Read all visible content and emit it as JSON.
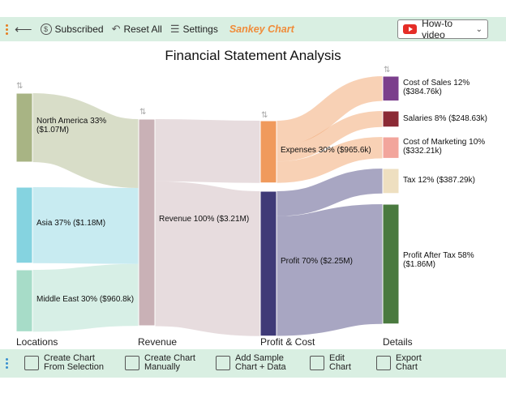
{
  "topbar": {
    "subscribed_label": "Subscribed",
    "reset_label": "Reset All",
    "settings_label": "Settings",
    "brand_label": "Sankey Chart",
    "howto_label": "How-to video"
  },
  "chart_data": {
    "type": "sankey",
    "title": "Financial Statement Analysis",
    "columns": [
      "Locations",
      "Revenue",
      "Profit & Cost",
      "Details"
    ],
    "nodes": [
      {
        "id": "na",
        "label_line1": "North America 33%",
        "label_line2": "($1.07M)",
        "value": 1.07,
        "color": "#a8b484"
      },
      {
        "id": "asia",
        "label_line1": "Asia 37% ($1.18M)",
        "label_line2": "",
        "value": 1.18,
        "color": "#85d3e0"
      },
      {
        "id": "me",
        "label_line1": "Middle East 30% ($960.8k)",
        "label_line2": "",
        "value": 0.9608,
        "color": "#a7dcc8"
      },
      {
        "id": "rev",
        "label_line1": "Revenue 100% ($3.21M)",
        "label_line2": "",
        "value": 3.21,
        "color": "#c9b1b6"
      },
      {
        "id": "exp",
        "label_line1": "Expenses 30% ($965.6k)",
        "label_line2": "",
        "value": 0.9656,
        "color": "#f09a5c"
      },
      {
        "id": "profit",
        "label_line1": "Profit 70% ($2.25M)",
        "label_line2": "",
        "value": 2.25,
        "color": "#3f3a77"
      },
      {
        "id": "cos",
        "label_line1": "Cost of Sales 12%",
        "label_line2": "($384.76k)",
        "value": 0.38476,
        "color": "#7b3f8c"
      },
      {
        "id": "sal",
        "label_line1": "Salaries 8% ($248.63k)",
        "label_line2": "",
        "value": 0.24863,
        "color": "#8b2a35"
      },
      {
        "id": "mkt",
        "label_line1": "Cost of Marketing 10%",
        "label_line2": "($332.21k)",
        "value": 0.33221,
        "color": "#f2a59c"
      },
      {
        "id": "tax",
        "label_line1": "Tax 12% ($387.29k)",
        "label_line2": "",
        "value": 0.38729,
        "color": "#eedfc0"
      },
      {
        "id": "pat",
        "label_line1": "Profit After Tax 58%",
        "label_line2": "($1.86M)",
        "value": 1.86,
        "color": "#4a7a3f"
      }
    ],
    "links": [
      {
        "source": "na",
        "target": "rev",
        "value": 1.07
      },
      {
        "source": "asia",
        "target": "rev",
        "value": 1.18
      },
      {
        "source": "me",
        "target": "rev",
        "value": 0.9608
      },
      {
        "source": "rev",
        "target": "exp",
        "value": 0.9656
      },
      {
        "source": "rev",
        "target": "profit",
        "value": 2.25
      },
      {
        "source": "exp",
        "target": "cos",
        "value": 0.38476
      },
      {
        "source": "exp",
        "target": "sal",
        "value": 0.24863
      },
      {
        "source": "exp",
        "target": "mkt",
        "value": 0.33221
      },
      {
        "source": "profit",
        "target": "tax",
        "value": 0.38729
      },
      {
        "source": "profit",
        "target": "pat",
        "value": 1.86
      }
    ]
  },
  "bottombar": {
    "create_selection": [
      "Create Chart",
      "From Selection"
    ],
    "create_manual": [
      "Create Chart",
      "Manually"
    ],
    "add_sample": [
      "Add Sample",
      "Chart + Data"
    ],
    "edit_chart": [
      "Edit",
      "Chart"
    ],
    "export_chart": [
      "Export",
      "Chart"
    ]
  }
}
